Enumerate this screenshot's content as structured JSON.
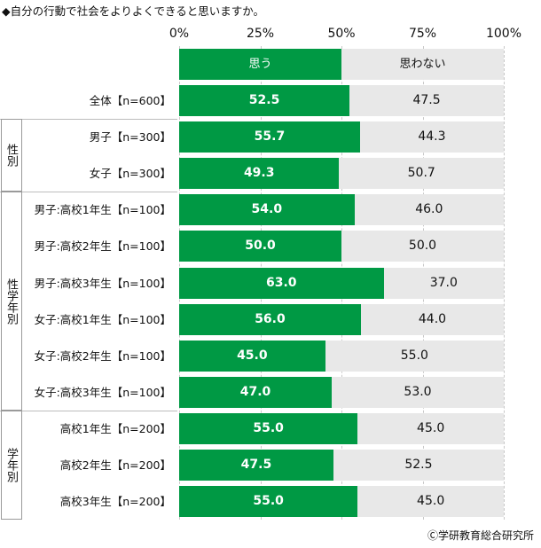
{
  "title": "◆自分の行動で社会をよりよくできると思いますか。",
  "copyright": "Ⓒ学研教育総合研究所",
  "colors": {
    "yes": "#009944",
    "no": "#e8e8e8"
  },
  "chart_data": {
    "type": "bar",
    "orientation": "horizontal",
    "stacked": true,
    "xlim": [
      0,
      100
    ],
    "ticks": [
      "0%",
      "25%",
      "50%",
      "75%",
      "100%"
    ],
    "tick_values": [
      0,
      25,
      50,
      75,
      100
    ],
    "legend": [
      "思う",
      "思わない"
    ],
    "categories": [
      "全体【n=600】",
      "男子【n=300】",
      "女子【n=300】",
      "男子:高校1年生【n=100】",
      "男子:高校2年生【n=100】",
      "男子:高校3年生【n=100】",
      "女子:高校1年生【n=100】",
      "女子:高校2年生【n=100】",
      "女子:高校3年生【n=100】",
      "高校1年生【n=200】",
      "高校2年生【n=200】",
      "高校3年生【n=200】"
    ],
    "series": [
      {
        "name": "思う",
        "values": [
          52.5,
          55.7,
          49.3,
          54.0,
          50.0,
          63.0,
          56.0,
          45.0,
          47.0,
          55.0,
          47.5,
          55.0
        ],
        "labels": [
          "52.5",
          "55.7",
          "49.3",
          "54.0",
          "50.0",
          "63.0",
          "56.0",
          "45.0",
          "47.0",
          "55.0",
          "47.5",
          "55.0"
        ]
      },
      {
        "name": "思わない",
        "values": [
          47.5,
          44.3,
          50.7,
          46.0,
          50.0,
          37.0,
          44.0,
          55.0,
          53.0,
          45.0,
          52.5,
          45.0
        ],
        "labels": [
          "47.5",
          "44.3",
          "50.7",
          "46.0",
          "50.0",
          "37.0",
          "44.0",
          "55.0",
          "53.0",
          "45.0",
          "52.5",
          "45.0"
        ]
      }
    ],
    "groups": [
      {
        "label": "性別",
        "rows": [
          1,
          2
        ]
      },
      {
        "label": "性学年別",
        "rows": [
          3,
          4,
          5,
          6,
          7,
          8
        ]
      },
      {
        "label": "学年別",
        "rows": [
          9,
          10,
          11
        ]
      }
    ]
  }
}
